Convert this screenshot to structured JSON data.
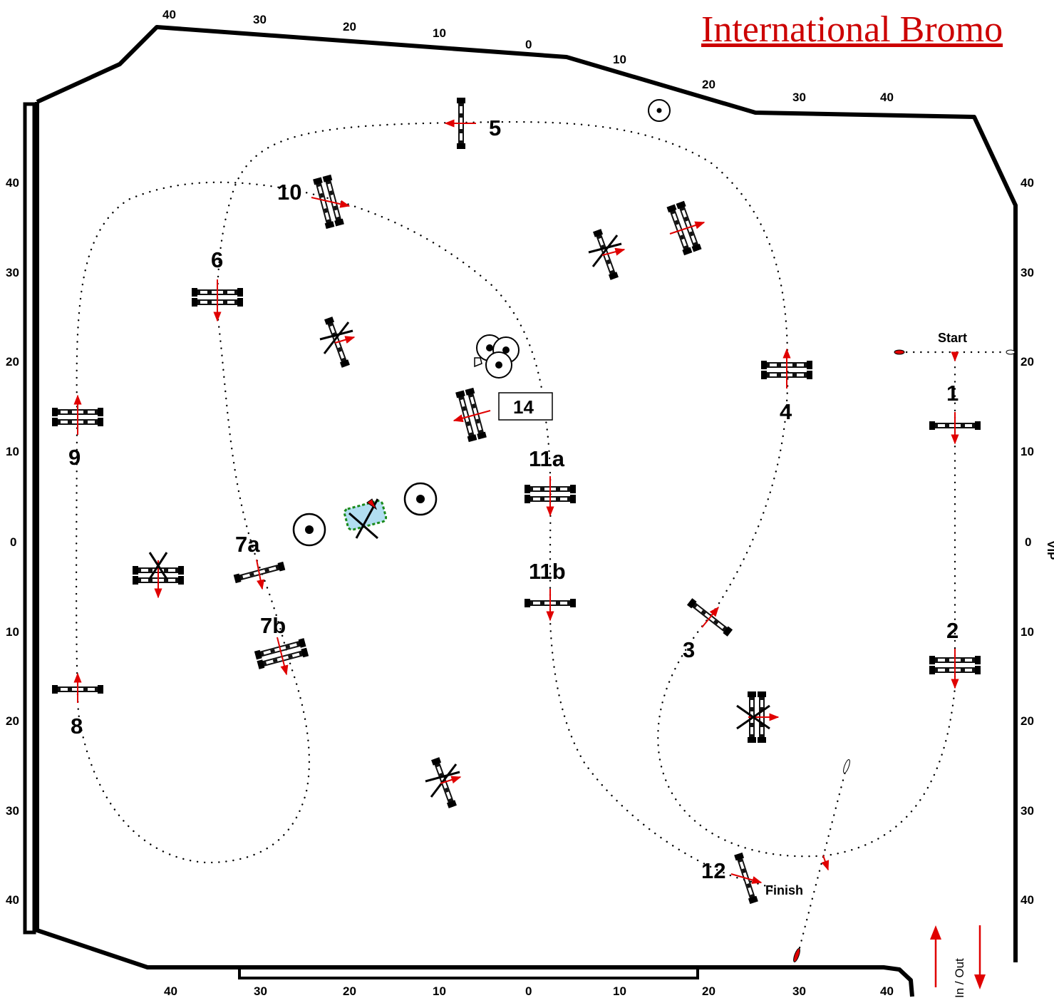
{
  "title": "International Bromo",
  "labels": {
    "start": "Start",
    "finish": "Finish",
    "inout": "In / Out",
    "vip": "VIP",
    "box14": "14"
  },
  "ticks": {
    "top": [
      "40",
      "30",
      "20",
      "10",
      "0",
      "10",
      "20",
      "30",
      "40"
    ],
    "bottom": [
      "40",
      "30",
      "20",
      "10",
      "0",
      "10",
      "20",
      "30",
      "40"
    ],
    "left": [
      "40",
      "30",
      "20",
      "10",
      "0",
      "10",
      "20",
      "30",
      "40"
    ],
    "right": [
      "40",
      "30",
      "20",
      "10",
      "0",
      "10",
      "20",
      "30",
      "40"
    ]
  },
  "obstacles": [
    {
      "num": "1"
    },
    {
      "num": "2"
    },
    {
      "num": "3"
    },
    {
      "num": "4"
    },
    {
      "num": "5"
    },
    {
      "num": "6"
    },
    {
      "num": "7a"
    },
    {
      "num": "7b"
    },
    {
      "num": "8"
    },
    {
      "num": "9"
    },
    {
      "num": "10"
    },
    {
      "num": "11a"
    },
    {
      "num": "11b"
    },
    {
      "num": "12"
    }
  ],
  "colors": {
    "direction_arrow": "#e00000",
    "title": "#cc0000",
    "wall": "#000000",
    "water_fill": "#7fc8e8",
    "water_edge": "#1a8a1a"
  }
}
